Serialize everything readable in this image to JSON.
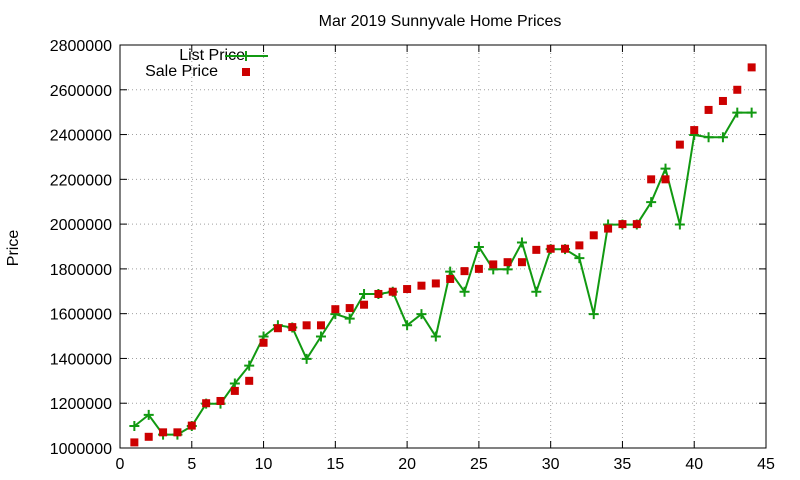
{
  "chart_data": {
    "type": "scatter",
    "title": "Mar 2019 Sunnyvale Home Prices",
    "xlabel": "",
    "ylabel": "Price",
    "xlim": [
      0,
      45
    ],
    "ylim": [
      1000000,
      2800000
    ],
    "xticks": [
      0,
      5,
      10,
      15,
      20,
      25,
      30,
      35,
      40,
      45
    ],
    "yticks": [
      1000000,
      1200000,
      1400000,
      1600000,
      1800000,
      2000000,
      2200000,
      2400000,
      2600000,
      2800000
    ],
    "grid": true,
    "legend_position": "top-left",
    "series": [
      {
        "name": "List Price",
        "style": "linespoints",
        "color": "#119911",
        "x": [
          1,
          2,
          3,
          4,
          5,
          6,
          7,
          8,
          9,
          10,
          11,
          12,
          13,
          14,
          15,
          16,
          17,
          18,
          19,
          20,
          21,
          22,
          23,
          24,
          25,
          26,
          27,
          28,
          29,
          30,
          31,
          32,
          33,
          34,
          35,
          36,
          37,
          38,
          39,
          40,
          41,
          42,
          43,
          44
        ],
        "values": [
          1098000,
          1148000,
          1060000,
          1060000,
          1098000,
          1198000,
          1198000,
          1288000,
          1368000,
          1498000,
          1548000,
          1538000,
          1398000,
          1498000,
          1598000,
          1578000,
          1688000,
          1688000,
          1698000,
          1548000,
          1598000,
          1498000,
          1788000,
          1698000,
          1898000,
          1798000,
          1798000,
          1918000,
          1698000,
          1888000,
          1888000,
          1848000,
          1598000,
          1998000,
          1998000,
          1998000,
          2098000,
          2248000,
          1998000,
          2398000,
          2388000,
          2388000,
          2498000,
          2498000
        ]
      },
      {
        "name": "Sale Price",
        "style": "points",
        "color": "#cc0000",
        "x": [
          1,
          2,
          3,
          4,
          5,
          6,
          7,
          8,
          9,
          10,
          11,
          12,
          13,
          14,
          15,
          16,
          17,
          18,
          19,
          20,
          21,
          22,
          23,
          24,
          25,
          26,
          27,
          28,
          29,
          30,
          31,
          32,
          33,
          34,
          35,
          36,
          37,
          38,
          39,
          40,
          41,
          42,
          43,
          44
        ],
        "values": [
          1025000,
          1050000,
          1070000,
          1070000,
          1100000,
          1200000,
          1210000,
          1255000,
          1300000,
          1470000,
          1535000,
          1540000,
          1548000,
          1548000,
          1620000,
          1625000,
          1640000,
          1688000,
          1698000,
          1710000,
          1725000,
          1735000,
          1755000,
          1790000,
          1800000,
          1820000,
          1830000,
          1830000,
          1885000,
          1890000,
          1890000,
          1905000,
          1950000,
          1980000,
          2000000,
          2000000,
          2200000,
          2200000,
          2355000,
          2420000,
          2510000,
          2550000,
          2600000,
          2700000
        ]
      }
    ]
  }
}
